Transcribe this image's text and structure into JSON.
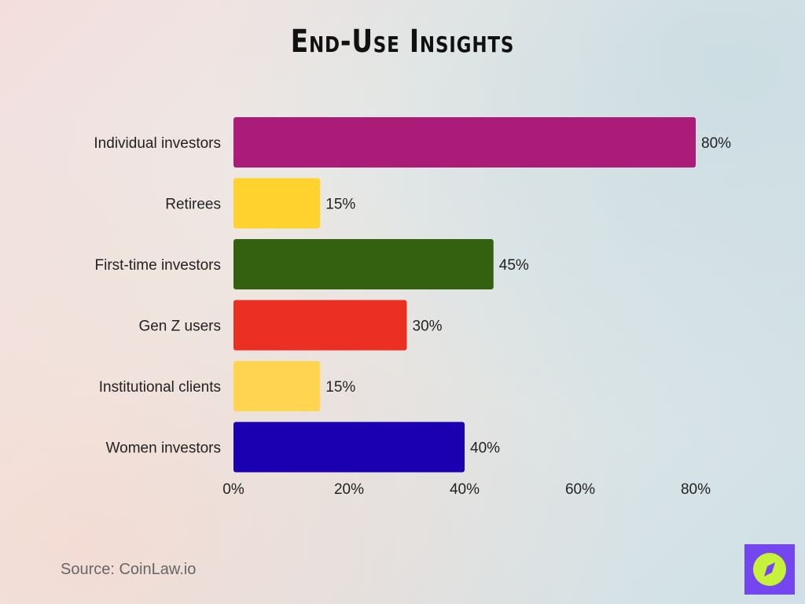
{
  "chart_data": {
    "type": "bar",
    "orientation": "horizontal",
    "title": "End-Use Insights",
    "categories": [
      "Individual investors",
      "Retirees",
      "First-time investors",
      "Gen Z users",
      "Institutional clients",
      "Women investors"
    ],
    "values": [
      80,
      15,
      45,
      30,
      15,
      40
    ],
    "value_labels": [
      "80%",
      "15%",
      "45%",
      "30%",
      "15%",
      "40%"
    ],
    "colors": [
      "#ab1c78",
      "#ffd22e",
      "#346110",
      "#eb2f23",
      "#ffd451",
      "#1a00b0"
    ],
    "xticks": [
      "0%",
      "20%",
      "40%",
      "60%",
      "80%"
    ],
    "xtick_values": [
      0,
      20,
      40,
      60,
      80
    ],
    "xlim": [
      0,
      80
    ],
    "grid": false,
    "xlabel": "",
    "ylabel": ""
  },
  "source": "Source: CoinLaw.io",
  "logo": {
    "icon": "compass-icon",
    "bg": "#7446f0",
    "fg": "#c7f23c"
  }
}
